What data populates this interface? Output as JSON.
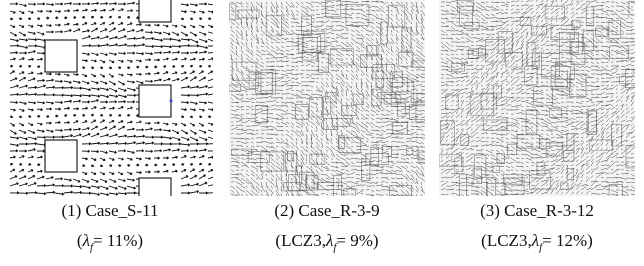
{
  "panels": [
    {
      "label": "(1) Case_S-11",
      "param": {
        "pre": "(",
        "symbol": "λ",
        "sub": "f",
        "post": "= 11%)"
      }
    },
    {
      "label": "(2) Case_R-3-9",
      "param": {
        "pre": "(LCZ3,",
        "symbol": "λ",
        "sub": "f",
        "post": "= 9%)"
      }
    },
    {
      "label": "(3) Case_R-3-12",
      "param": {
        "pre": "(LCZ3,",
        "symbol": "λ",
        "sub": "f",
        "post": "= 12%)"
      }
    }
  ]
}
